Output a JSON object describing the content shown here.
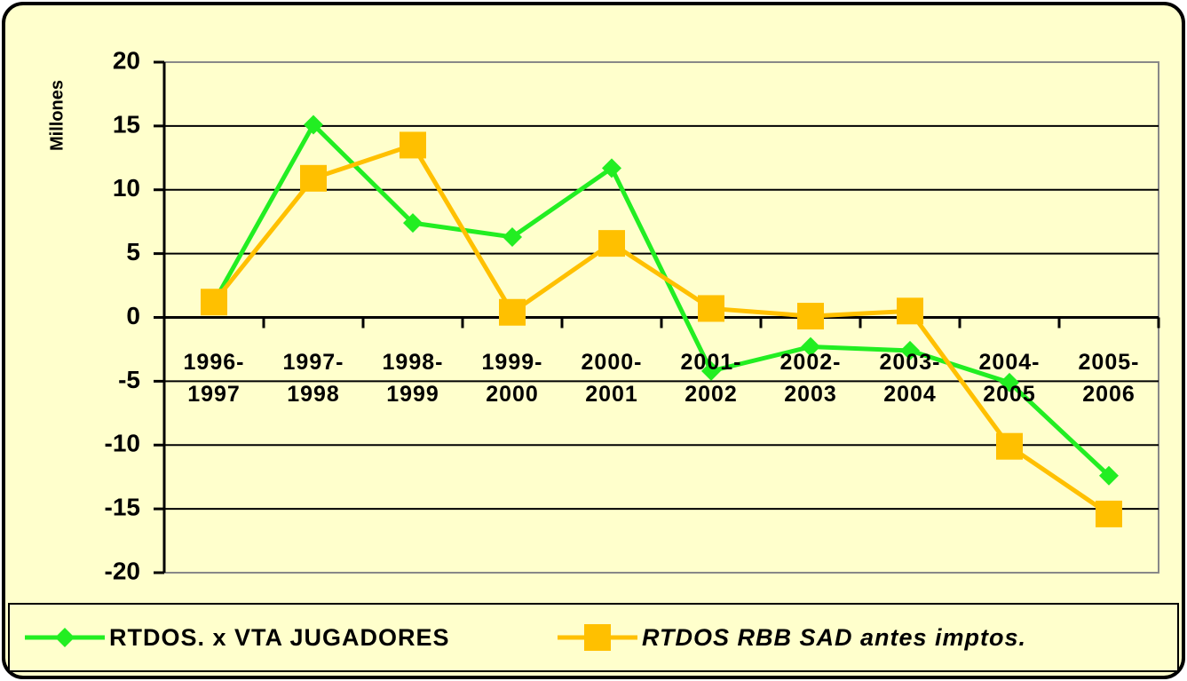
{
  "chart_data": {
    "type": "line",
    "categories": [
      "1996-1997",
      "1997-1998",
      "1998-1999",
      "1999-2000",
      "2000-2001",
      "2001-2002",
      "2002-2003",
      "2003-2004",
      "2004-2005",
      "2005-2006"
    ],
    "y_label": "Millones",
    "series": [
      {
        "name": "RTDOS. x VTA JUGADORES",
        "color": "#22ee22",
        "marker": "diamond",
        "values": [
          1.2,
          15.1,
          7.4,
          6.3,
          11.7,
          -4.2,
          -2.3,
          -2.6,
          -5.1,
          -12.4
        ]
      },
      {
        "name": "RTDOS RBB SAD antes imptos.",
        "color": "#ffc000",
        "marker": "square",
        "values": [
          1.2,
          10.9,
          13.5,
          0.4,
          5.8,
          0.7,
          0.1,
          0.5,
          -10.1,
          -15.4
        ]
      }
    ],
    "ylim": [
      -20,
      20
    ],
    "yticks": [
      -20,
      -15,
      -10,
      -5,
      0,
      5,
      10,
      15,
      20
    ],
    "grid": true
  }
}
